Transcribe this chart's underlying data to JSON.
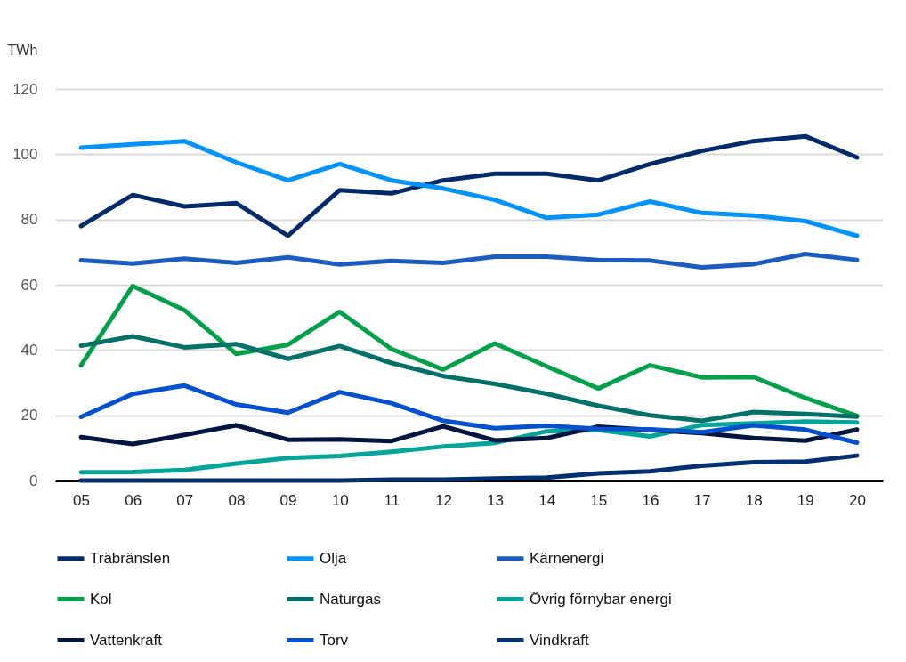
{
  "chart_data": {
    "type": "line",
    "ylabel": "TWh",
    "categories": [
      "05",
      "06",
      "07",
      "08",
      "09",
      "10",
      "11",
      "12",
      "13",
      "14",
      "15",
      "16",
      "17",
      "18",
      "19",
      "20"
    ],
    "ylim": [
      0,
      120
    ],
    "yticks": [
      0,
      20,
      40,
      60,
      80,
      100,
      120
    ],
    "grid": "y",
    "legend": "bottom",
    "line_style": "solid",
    "series": [
      {
        "name": "Träbränslen",
        "color": "#002b6b",
        "values": [
          78,
          87.5,
          84,
          85,
          75,
          89,
          88,
          92,
          94,
          94,
          92,
          97,
          101,
          104,
          105.5,
          99
        ]
      },
      {
        "name": "Olja",
        "color": "#0093ff",
        "values": [
          102,
          103,
          104,
          97.5,
          92,
          97,
          92,
          89.5,
          86,
          80.5,
          81.5,
          85.5,
          82,
          81.2,
          79.5,
          75
        ]
      },
      {
        "name": "Kärnenergi",
        "color": "#1a5cc0",
        "values": [
          67.5,
          66.5,
          68,
          66.7,
          68.4,
          66.2,
          67.3,
          66.7,
          68.6,
          68.6,
          67.6,
          67.4,
          65.3,
          66.3,
          69.4,
          67.6
        ]
      },
      {
        "name": "Kol",
        "color": "#00a04a",
        "values": [
          35.3,
          59.6,
          52.2,
          38.8,
          41.6,
          51.7,
          40.3,
          34,
          42,
          35,
          28.2,
          35.3,
          31.6,
          31.7,
          25.3,
          19.8
        ]
      },
      {
        "name": "Naturgas",
        "color": "#007068",
        "values": [
          41.3,
          44.2,
          40.8,
          41.8,
          37.3,
          41.2,
          36,
          32,
          29.6,
          26.6,
          22.9,
          20,
          18.3,
          21,
          20.4,
          19.6
        ]
      },
      {
        "name": "Övrig förnybar energi",
        "color": "#00a59a",
        "values": [
          2.5,
          2.6,
          3.2,
          5.2,
          6.9,
          7.5,
          8.8,
          10.4,
          11.5,
          15.1,
          15.5,
          13.5,
          17,
          17.5,
          18.1,
          17.8
        ]
      },
      {
        "name": "Vattenkraft",
        "color": "#001540",
        "values": [
          13.3,
          11.2,
          14,
          16.9,
          12.5,
          12.6,
          12.1,
          16.6,
          12.3,
          13,
          16.5,
          15.5,
          14.5,
          13,
          12.2,
          15.6
        ]
      },
      {
        "name": "Torv",
        "color": "#0050d0",
        "values": [
          19.5,
          26.5,
          29.1,
          23.3,
          20.8,
          27.1,
          23.7,
          18.3,
          16,
          16.8,
          15.8,
          15.7,
          14.8,
          16.9,
          15.6,
          11.6
        ]
      },
      {
        "name": "Vindkraft",
        "color": "#003070",
        "values": [
          0,
          0,
          0,
          0,
          0,
          0,
          0.3,
          0.3,
          0.6,
          0.9,
          2.2,
          2.8,
          4.5,
          5.6,
          5.8,
          7.6
        ]
      }
    ]
  }
}
